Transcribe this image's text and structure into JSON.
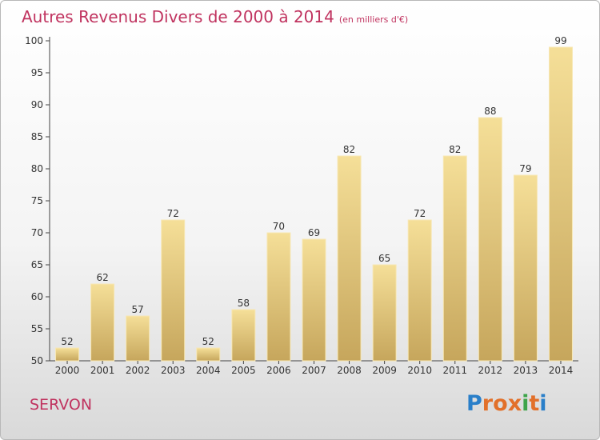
{
  "header": {
    "title": "Autres Revenus Divers de 2000 à 2014",
    "unit": "(en milliers d'€)"
  },
  "footer": {
    "commune": "SERVON",
    "logo_letters": [
      "P",
      "r",
      "o",
      "x",
      "i",
      "t",
      "i"
    ]
  },
  "colors": {
    "title": "#c0335f",
    "bar_light": "#f3dc93",
    "bar_dark": "#c9a95f",
    "axis": "#444444",
    "logo": [
      "#2a7fc9",
      "#e2702a",
      "#e2702a",
      "#e2702a",
      "#3ea44a",
      "#e2702a",
      "#2a7fc9"
    ]
  },
  "chart_data": {
    "type": "bar",
    "categories": [
      "2000",
      "2001",
      "2002",
      "2003",
      "2004",
      "2005",
      "2006",
      "2007",
      "2008",
      "2009",
      "2010",
      "2011",
      "2012",
      "2013",
      "2014"
    ],
    "values": [
      52,
      62,
      57,
      72,
      52,
      58,
      70,
      69,
      82,
      65,
      72,
      82,
      88,
      79,
      99
    ],
    "ylim": [
      50,
      100
    ],
    "yticks": [
      50,
      55,
      60,
      65,
      70,
      75,
      80,
      85,
      90,
      95,
      100
    ],
    "grid": false,
    "data_labels": true
  }
}
